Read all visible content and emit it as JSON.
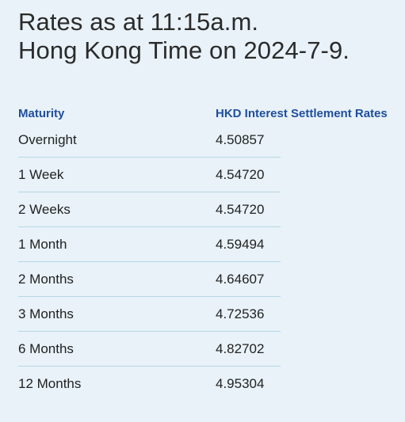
{
  "header": {
    "title_line1": "Rates as at 11:15a.m.",
    "title_line2": "Hong Kong Time on 2024-7-9."
  },
  "table": {
    "columns": [
      "Maturity",
      "HKD Interest Settlement Rates"
    ],
    "rows": [
      {
        "maturity": "Overnight",
        "rate": "4.50857"
      },
      {
        "maturity": "1 Week",
        "rate": "4.54720"
      },
      {
        "maturity": "2 Weeks",
        "rate": "4.54720"
      },
      {
        "maturity": "1 Month",
        "rate": "4.59494"
      },
      {
        "maturity": "2 Months",
        "rate": "4.64607"
      },
      {
        "maturity": "3 Months",
        "rate": "4.72536"
      },
      {
        "maturity": "6 Months",
        "rate": "4.82702"
      },
      {
        "maturity": "12 Months",
        "rate": "4.95304"
      }
    ]
  },
  "colors": {
    "background": "#e8f2f8",
    "header_text": "#1f4e9e",
    "divider": "#b8d6e6"
  }
}
